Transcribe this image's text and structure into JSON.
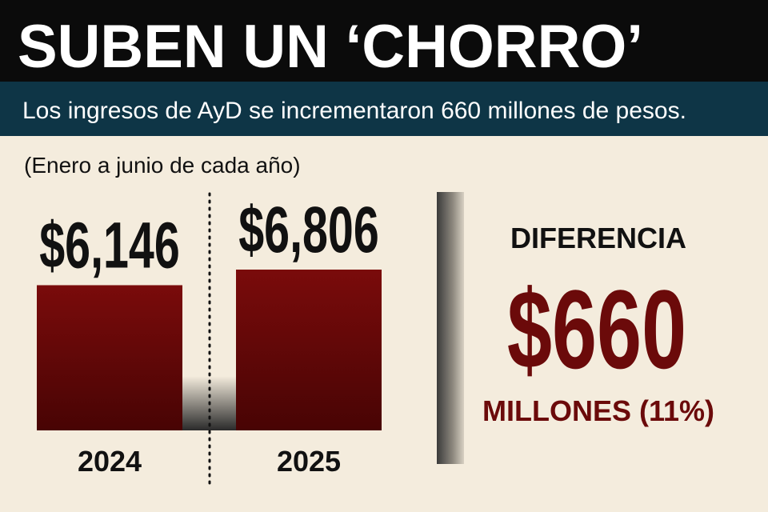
{
  "chart_data": {
    "type": "bar",
    "title": "SUBEN UN ‘CHORRO’",
    "subtitle": "Los ingresos de AyD se incrementaron 660 millones de pesos.",
    "note": "(Enero a junio de cada año)",
    "categories": [
      "2024",
      "2025"
    ],
    "values": [
      6146,
      6806
    ],
    "value_labels": [
      "$6,146",
      "$6,806"
    ],
    "color": "#6e0a0a",
    "difference": {
      "heading": "DIFERENCIA",
      "amount": "$660",
      "detail": "MILLONES (11%)"
    }
  }
}
